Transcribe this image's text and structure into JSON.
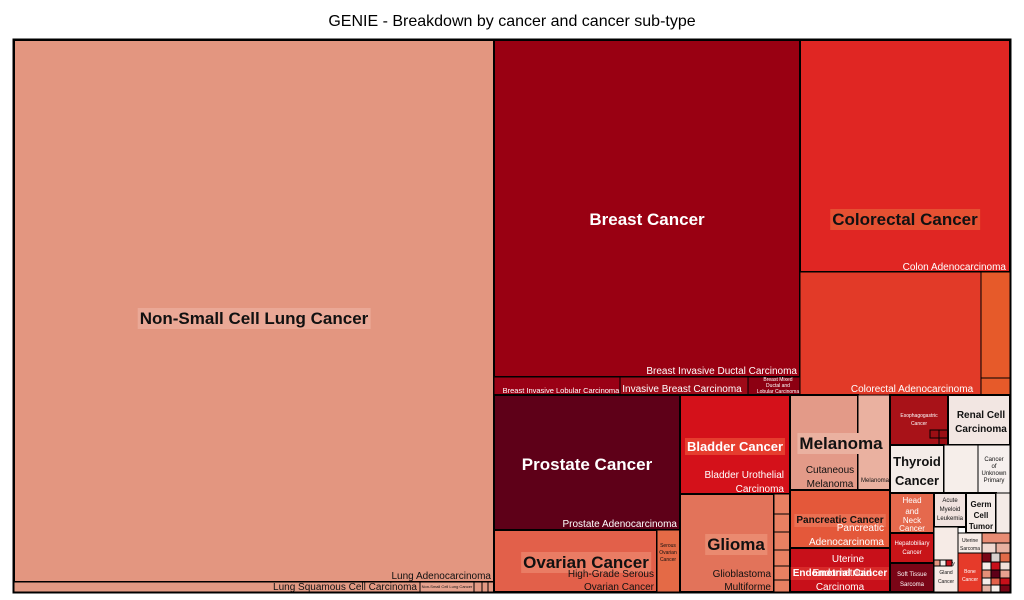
{
  "chart_data": {
    "type": "treemap",
    "title": "GENIE - Breakdown by cancer and cancer sub-type",
    "groups": [
      {
        "name": "Non-Small Cell Lung Cancer",
        "color": "#e39680",
        "subtypes": [
          {
            "name": "Lung Adenocarcinoma"
          },
          {
            "name": "Lung Squamous Cell Carcinoma"
          },
          {
            "name": "Non-Small Cell Lung Cancer"
          }
        ]
      },
      {
        "name": "Breast Cancer",
        "color": "#990012",
        "subtypes": [
          {
            "name": "Breast Invasive Ductal Carcinoma"
          },
          {
            "name": "Breast Invasive Lobular Carcinoma"
          },
          {
            "name": "Invasive Breast Carcinoma"
          },
          {
            "name": "Breast Mixed Ductal and Lobular Carcinoma"
          }
        ]
      },
      {
        "name": "Colorectal Cancer",
        "color": "#e02623",
        "subtypes": [
          {
            "name": "Colon Adenocarcinoma"
          },
          {
            "name": "Colorectal Adenocarcinoma"
          }
        ]
      },
      {
        "name": "Prostate Cancer",
        "color": "#5e0018",
        "subtypes": [
          {
            "name": "Prostate Adenocarcinoma"
          }
        ]
      },
      {
        "name": "Bladder Cancer",
        "color": "#d4111a",
        "subtypes": [
          {
            "name": "Bladder Urothelial Carcinoma"
          }
        ]
      },
      {
        "name": "Melanoma",
        "color": "#e39a88",
        "subtypes": [
          {
            "name": "Cutaneous Melanoma"
          },
          {
            "name": "Melanoma"
          }
        ]
      },
      {
        "name": "Ovarian Cancer",
        "color": "#e2604a",
        "subtypes": [
          {
            "name": "High-Grade Serous Ovarian Cancer"
          },
          {
            "name": "Serous Ovarian Cancer"
          }
        ]
      },
      {
        "name": "Glioma",
        "color": "#e2735a",
        "subtypes": [
          {
            "name": "Glioblastoma Multiforme"
          }
        ]
      },
      {
        "name": "Pancreatic Cancer",
        "color": "#e4583a",
        "subtypes": [
          {
            "name": "Pancreatic Adenocarcinoma"
          }
        ]
      },
      {
        "name": "Endometrial Cancer",
        "color": "#c8101a",
        "subtypes": [
          {
            "name": "Uterine Endometrioid Carcinoma"
          }
        ]
      },
      {
        "name": "Esophagogastric Cancer",
        "color": "#a81218"
      },
      {
        "name": "Renal Cell Carcinoma",
        "color": "#f2e6e2"
      },
      {
        "name": "Thyroid Cancer",
        "color": "#f4ece8"
      },
      {
        "name": "Cancer of Unknown Primary",
        "color": "#f6f0ee"
      },
      {
        "name": "Head and Neck Cancer",
        "color": "#e5694d"
      },
      {
        "name": "Leukemia",
        "color": "#f0e2de"
      },
      {
        "name": "Germ Cell Tumor",
        "color": "#f4ebe7"
      },
      {
        "name": "Hepatobiliary Cancer",
        "color": "#c81418"
      },
      {
        "name": "Soft Tissue Sarcoma",
        "color": "#7a0516"
      }
    ]
  },
  "labels": {
    "lung_adeno": "Lung Adenocarcinoma",
    "lung_squam": "Lung Squamous Cell Carcinoma",
    "lung_nsclc": "Non-Small Cell Lung Cancer",
    "breast_idc": "Breast Invasive Ductal Carcinoma",
    "breast_ilc": "Breast Invasive Lobular Carcinoma",
    "breast_ibc": "Invasive Breast Carcinoma",
    "breast_mixed_1": "Breast Mixed",
    "breast_mixed_2": "Ductal and",
    "breast_mixed_3": "Lobular Carcinoma",
    "colon_adeno": "Colon Adenocarcinoma",
    "crc_adeno": "Colorectal Adenocarcinoma",
    "prostate_adeno": "Prostate Adenocarcinoma",
    "bladder_uro_1": "Bladder Urothelial",
    "bladder_uro_2": "Carcinoma",
    "mel_cut_1": "Cutaneous",
    "mel_cut_2": "Melanoma",
    "mel_other": "Melanoma",
    "ov_hgs_1": "High-Grade Serous",
    "ov_hgs_2": "Ovarian Cancer",
    "ov_serous_1": "Serous",
    "ov_serous_2": "Ovarian",
    "ov_serous_3": "Cancer",
    "glioma_gbm_1": "Glioblastoma",
    "glioma_gbm_2": "Multiforme",
    "panc_adeno_1": "Pancreatic",
    "panc_adeno_2": "Adenocarcinoma",
    "endo_ucec_1": "Uterine",
    "endo_ucec_2": "Endometrioid",
    "endo_ucec_3": "Carcinoma",
    "eso_1": "Esophagogastric",
    "eso_2": "Cancer",
    "renal_1": "Renal Cell",
    "renal_2": "Carcinoma",
    "thyroid_1": "Thyroid",
    "thyroid_2": "Cancer",
    "cup_1": "Cancer",
    "cup_2": "of",
    "cup_3": "Unknown",
    "cup_4": "Primary",
    "hn_1": "Head",
    "hn_2": "and",
    "hn_3": "Neck",
    "hn_4": "Cancer",
    "leuk_1": "Acute",
    "leuk_2": "Myeloid",
    "leuk_3": "Leukemia",
    "germ_1": "Germ",
    "germ_2": "Cell",
    "germ_3": "Tumor",
    "hepato_1": "Hepatobiliary",
    "hepato_2": "Cancer",
    "sts_1": "Soft Tissue",
    "sts_2": "Sarcoma",
    "small_1": "Salivary",
    "small_2": "Gland",
    "small_3": "Cancer",
    "uterine_1": "Uterine",
    "uterine_2": "Sarcoma",
    "bone_1": "Bone",
    "bone_2": "Cancer"
  },
  "headers": {
    "lung": "Non-Small Cell Lung Cancer",
    "breast": "Breast Cancer",
    "colorectal": "Colorectal Cancer",
    "prostate": "Prostate Cancer",
    "bladder": "Bladder Cancer",
    "melanoma": "Melanoma",
    "ovarian": "Ovarian Cancer",
    "glioma": "Glioma",
    "pancreatic": "Pancreatic Cancer",
    "endometrial": "Endometrial Cancer"
  }
}
